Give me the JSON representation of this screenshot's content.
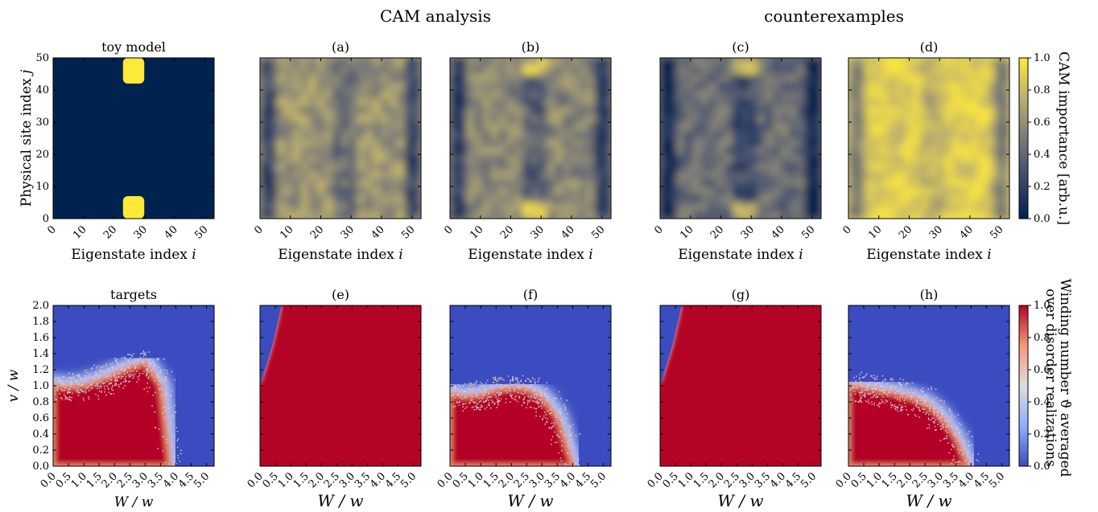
{
  "group_titles": {
    "cam": "CAM analysis",
    "counter": "counterexamples"
  },
  "colors": {
    "cividis_low": "#00224e",
    "cividis_mid": "#7c7b78",
    "cividis_high": "#fee838",
    "coolwarm_low": "#3b4cc0",
    "coolwarm_mid": "#dddddd",
    "coolwarm_high": "#b40426"
  },
  "chart_data": [
    {
      "type": "heatmap",
      "panel": "toy",
      "title": "toy model",
      "xlabel": "Eigenstate index i",
      "ylabel": "Physical site index j",
      "xlim": [
        0,
        53
      ],
      "ylim": [
        0,
        50
      ],
      "xticks": [
        "0",
        "10",
        "20",
        "30",
        "40",
        "50"
      ],
      "yticks": [
        "0",
        "10",
        "20",
        "30",
        "40",
        "50"
      ],
      "colormap": "cividis",
      "features": [
        {
          "region": "bright block",
          "i": [
            23,
            30
          ],
          "j": [
            0,
            7
          ],
          "value": 1.0
        },
        {
          "region": "bright block",
          "i": [
            23,
            30
          ],
          "j": [
            42,
            50
          ],
          "value": 1.0
        },
        {
          "region": "background",
          "value": 0.0
        }
      ]
    },
    {
      "type": "heatmap",
      "panel": "a",
      "title": "(a)",
      "xlabel": "Eigenstate index i",
      "xlim": [
        0,
        53
      ],
      "ylim": [
        0,
        50
      ],
      "xticks": [
        "0",
        "10",
        "20",
        "30",
        "40",
        "50"
      ],
      "colormap": "cividis"
    },
    {
      "type": "heatmap",
      "panel": "b",
      "title": "(b)",
      "xlabel": "Eigenstate index i",
      "xlim": [
        0,
        53
      ],
      "ylim": [
        0,
        50
      ],
      "xticks": [
        "0",
        "10",
        "20",
        "30",
        "40",
        "50"
      ],
      "colormap": "cividis"
    },
    {
      "type": "heatmap",
      "panel": "c",
      "title": "(c)",
      "xlabel": "Eigenstate index i",
      "xlim": [
        0,
        53
      ],
      "ylim": [
        0,
        50
      ],
      "xticks": [
        "0",
        "10",
        "20",
        "30",
        "40",
        "50"
      ],
      "colormap": "cividis"
    },
    {
      "type": "heatmap",
      "panel": "d",
      "title": "(d)",
      "xlabel": "Eigenstate index i",
      "xlim": [
        0,
        53
      ],
      "ylim": [
        0,
        50
      ],
      "xticks": [
        "0",
        "10",
        "20",
        "30",
        "40",
        "50"
      ],
      "colormap": "cividis"
    },
    {
      "type": "heatmap",
      "panel": "targets",
      "title": "targets",
      "xlabel": "W / w",
      "ylabel": "v / w",
      "xlim": [
        0,
        5.25
      ],
      "ylim": [
        0,
        2.0
      ],
      "xticks": [
        "0.0",
        "0.5",
        "1.0",
        "1.5",
        "2.0",
        "2.5",
        "3.0",
        "3.5",
        "4.0",
        "4.5",
        "5.0"
      ],
      "yticks": [
        "0.0",
        "0.2",
        "0.4",
        "0.6",
        "0.8",
        "1.0",
        "1.2",
        "1.4",
        "1.6",
        "1.8",
        "2.0"
      ],
      "colormap": "coolwarm",
      "boundary": {
        "W": [
          0,
          0.5,
          1.0,
          1.5,
          2.0,
          2.5,
          3.0,
          3.5,
          3.8
        ],
        "v": [
          1.0,
          0.98,
          1.0,
          1.06,
          1.14,
          1.22,
          1.28,
          1.0,
          0.0
        ]
      }
    },
    {
      "type": "heatmap",
      "panel": "e",
      "title": "(e)",
      "xlabel": "W / w",
      "xlim": [
        0,
        5.25
      ],
      "ylim": [
        0,
        2.0
      ],
      "xticks": [
        "0.0",
        "0.5",
        "1.0",
        "1.5",
        "2.0",
        "2.5",
        "3.0",
        "3.5",
        "4.0",
        "4.5",
        "5.0"
      ],
      "colormap": "coolwarm",
      "boundary": {
        "W": [
          0,
          0.2,
          0.4,
          0.55,
          0.7
        ],
        "v": [
          1.0,
          1.25,
          1.5,
          1.75,
          2.0
        ]
      }
    },
    {
      "type": "heatmap",
      "panel": "f",
      "title": "(f)",
      "xlabel": "W / w",
      "xlim": [
        0,
        5.25
      ],
      "ylim": [
        0,
        2.0
      ],
      "xticks": [
        "0.0",
        "0.5",
        "1.0",
        "1.5",
        "2.0",
        "2.5",
        "3.0",
        "3.5",
        "4.0",
        "4.5",
        "5.0"
      ],
      "colormap": "coolwarm",
      "boundary": {
        "W": [
          0,
          0.5,
          1.0,
          1.5,
          2.0,
          2.5,
          3.0,
          3.5,
          4.0
        ],
        "v": [
          0.9,
          0.86,
          0.88,
          0.94,
          0.97,
          0.95,
          0.85,
          0.6,
          0.0
        ]
      }
    },
    {
      "type": "heatmap",
      "panel": "g",
      "title": "(g)",
      "xlabel": "W / w",
      "xlim": [
        0,
        5.25
      ],
      "ylim": [
        0,
        2.0
      ],
      "xticks": [
        "0.0",
        "0.5",
        "1.0",
        "1.5",
        "2.0",
        "2.5",
        "3.0",
        "3.5",
        "4.0",
        "4.5",
        "5.0"
      ],
      "colormap": "coolwarm",
      "boundary": {
        "W": [
          0,
          0.2,
          0.4,
          0.55,
          0.7
        ],
        "v": [
          1.0,
          1.25,
          1.5,
          1.75,
          2.0
        ]
      }
    },
    {
      "type": "heatmap",
      "panel": "h",
      "title": "(h)",
      "xlabel": "W / w",
      "xlim": [
        0,
        5.25
      ],
      "ylim": [
        0,
        2.0
      ],
      "xticks": [
        "0.0",
        "0.5",
        "1.0",
        "1.5",
        "2.0",
        "2.5",
        "3.0",
        "3.5",
        "4.0",
        "4.5",
        "5.0"
      ],
      "colormap": "coolwarm",
      "boundary": {
        "W": [
          0,
          0.5,
          1.0,
          1.5,
          2.0,
          2.5,
          3.0,
          3.5,
          3.9
        ],
        "v": [
          1.0,
          0.97,
          0.94,
          0.9,
          0.85,
          0.78,
          0.62,
          0.35,
          0.0
        ]
      }
    },
    {
      "type": "colorbar",
      "panel": "cb_top",
      "label": "CAM importance [arb.u.]",
      "range": [
        0.0,
        1.0
      ],
      "ticks": [
        "0.0",
        "0.2",
        "0.4",
        "0.6",
        "0.8",
        "1.0"
      ],
      "colormap": "cividis"
    },
    {
      "type": "colorbar",
      "panel": "cb_bottom",
      "label_line1": "Winding number ϑ averaged",
      "label_line2": "over disorder realizations",
      "range": [
        0.0,
        1.0
      ],
      "ticks": [
        "0.0",
        "0.2",
        "0.4",
        "0.6",
        "0.8",
        "1.0"
      ],
      "colormap": "coolwarm"
    }
  ]
}
